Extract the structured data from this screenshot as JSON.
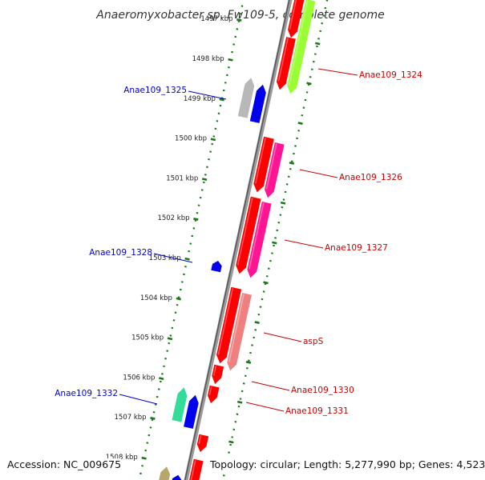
{
  "title": "Anaeromyxobacter sp. Fw109-5, complete genome",
  "ticks": [
    "1497 kbp",
    "1498 kbp",
    "1499 kbp",
    "1500 kbp",
    "1501 kbp",
    "1502 kbp",
    "1503 kbp",
    "1504 kbp",
    "1505 kbp",
    "1506 kbp",
    "1507 kbp",
    "1508 kbp"
  ],
  "genes": [
    {
      "label": "Anae109_1324",
      "strand": "forward",
      "color": "#99ff33"
    },
    {
      "label": "Anae109_1325",
      "strand": "reverse",
      "color": "#0000ee"
    },
    {
      "label": "Anae109_1326",
      "strand": "forward",
      "color": "#ff1493"
    },
    {
      "label": "Anae109_1327",
      "strand": "forward",
      "color": "#ff1493"
    },
    {
      "label": "Anae109_1328",
      "strand": "reverse",
      "color": "#0000ee"
    },
    {
      "label": "aspS",
      "strand": "forward",
      "color": "#f08080"
    },
    {
      "label": "Anae109_1330",
      "strand": "forward",
      "color": "#ff0000"
    },
    {
      "label": "Anae109_1331",
      "strand": "forward",
      "color": "#ff0000"
    },
    {
      "label": "Anae109_1332",
      "strand": "reverse",
      "color": "#0000ee"
    }
  ],
  "colors": {
    "cds": "#ff0000",
    "forward_label": "#cc0000",
    "reverse_label": "#0000cc",
    "backbone": "#808080",
    "tick": "#1a7a1a"
  },
  "footer": {
    "accession": "Accession: NC_009675",
    "topology": "Topology: circular; Length: 5,277,990 bp; Genes: 4,523"
  }
}
